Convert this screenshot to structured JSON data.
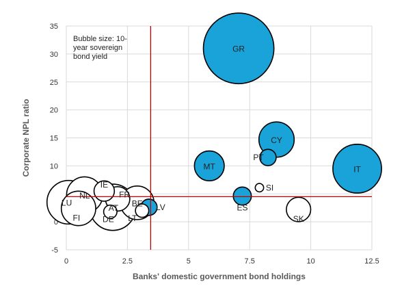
{
  "chart_data": {
    "type": "scatter",
    "subtype": "bubble",
    "xlabel": "Banks' domestic government bond holdings",
    "ylabel": "Corporate NPL ratio",
    "xlim": [
      0,
      12.5
    ],
    "ylim": [
      -5,
      35
    ],
    "x_ticks": [
      0,
      2.5,
      5,
      7.5,
      10,
      12.5
    ],
    "x_tick_labels": [
      "0",
      "2.5",
      "5",
      "7.5",
      "10",
      "12.5"
    ],
    "y_ticks": [
      -5,
      0,
      5,
      10,
      15,
      20,
      25,
      30,
      35
    ],
    "y_tick_labels": [
      "-5",
      "0",
      "5",
      "10",
      "15",
      "20",
      "25",
      "30",
      "35"
    ],
    "grid": "horizontal-and-vertical",
    "note_lines": [
      "Bubble size: 10-",
      "year sovereign",
      "bond yield"
    ],
    "reference_lines": {
      "x": 3.45,
      "y": 4.5,
      "color": "#c00000"
    },
    "colors": {
      "highlighted": "#1aa3d9",
      "plain": "#ffffff",
      "outline": "#000000",
      "grid": "#d9d9d9"
    },
    "points": [
      {
        "label": "GR",
        "x": 7.05,
        "y": 31.0,
        "size": 8.4,
        "highlight": true
      },
      {
        "label": "IT",
        "x": 11.9,
        "y": 9.5,
        "size": 4.0,
        "highlight": true
      },
      {
        "label": "CY",
        "x": 8.6,
        "y": 14.7,
        "size": 2.1,
        "highlight": true
      },
      {
        "label": "MT",
        "x": 5.85,
        "y": 10.0,
        "size": 1.5,
        "highlight": true
      },
      {
        "label": "PT",
        "x": 8.25,
        "y": 11.5,
        "size": 0.45,
        "highlight": true
      },
      {
        "label": "ES",
        "x": 7.2,
        "y": 4.6,
        "size": 0.55,
        "highlight": true
      },
      {
        "label": "LV",
        "x": 3.38,
        "y": 2.6,
        "size": 0.45,
        "highlight": true
      },
      {
        "label": "SI",
        "x": 7.9,
        "y": 6.1,
        "size": 0.12,
        "highlight": false
      },
      {
        "label": "SK",
        "x": 9.5,
        "y": 2.2,
        "size": 1.0,
        "highlight": false
      },
      {
        "label": "LU",
        "x": 0.1,
        "y": 3.5,
        "size": 3.2,
        "highlight": false
      },
      {
        "label": "NL",
        "x": 0.75,
        "y": 4.8,
        "size": 2.2,
        "highlight": false
      },
      {
        "label": "FI",
        "x": 0.5,
        "y": 2.4,
        "size": 2.0,
        "highlight": false
      },
      {
        "label": "IE",
        "x": 1.55,
        "y": 5.5,
        "size": 0.7,
        "highlight": false
      },
      {
        "label": "FR",
        "x": 2.1,
        "y": 4.1,
        "size": 1.0,
        "highlight": false
      },
      {
        "label": "AT",
        "x": 1.9,
        "y": 2.6,
        "size": 3.6,
        "highlight": false
      },
      {
        "label": "DE",
        "x": 1.8,
        "y": 1.8,
        "size": 0.3,
        "highlight": false
      },
      {
        "label": "BE",
        "x": 2.9,
        "y": 3.4,
        "size": 1.9,
        "highlight": false
      },
      {
        "label": "LT",
        "x": 3.1,
        "y": 2.0,
        "size": 0.3,
        "highlight": false
      }
    ]
  }
}
